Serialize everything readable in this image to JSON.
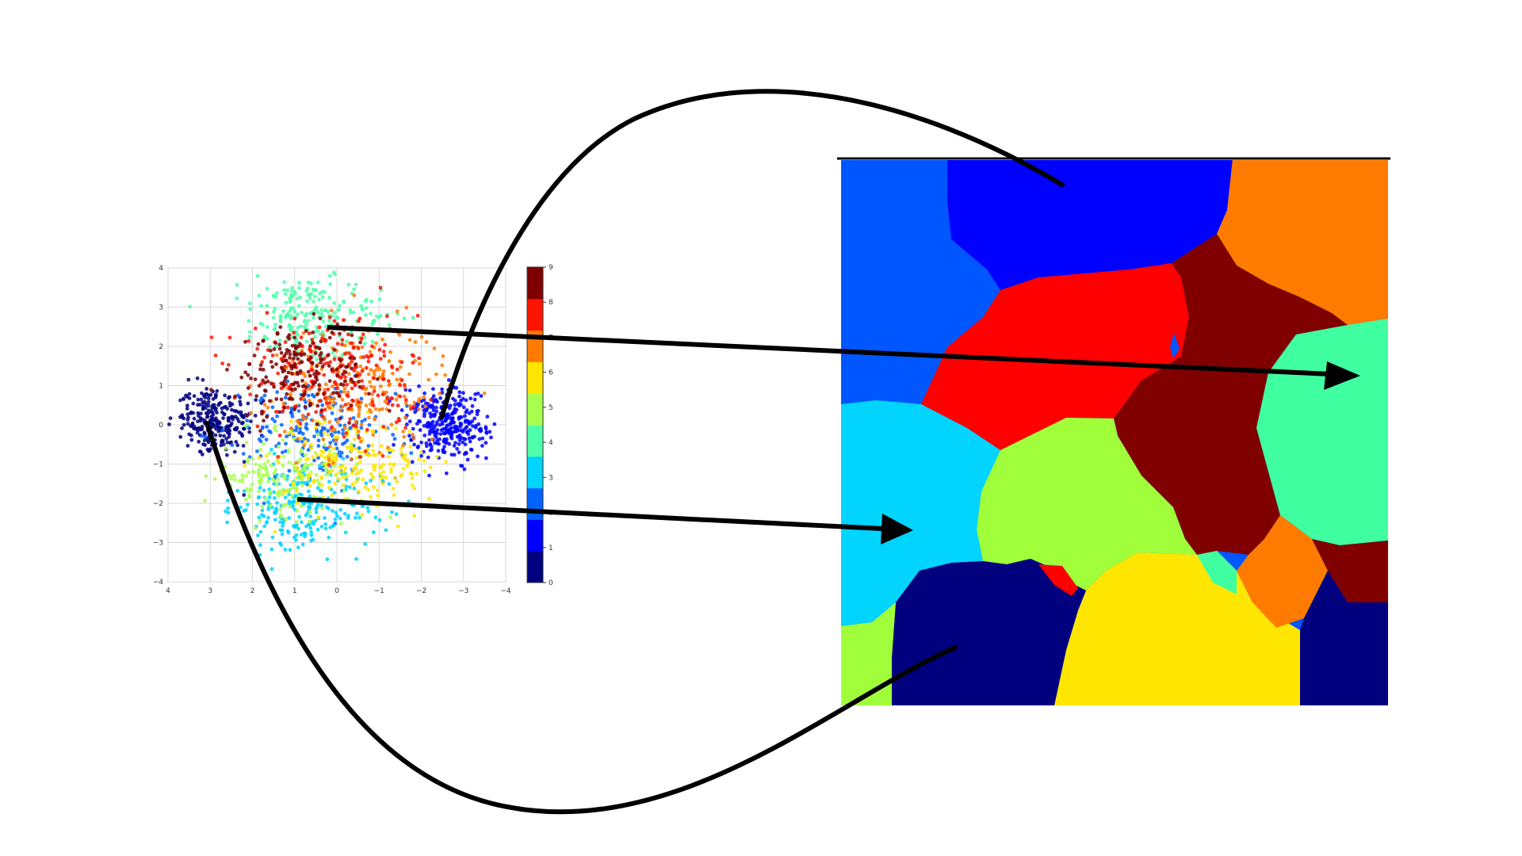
{
  "scatter": {
    "x_ticks": [
      "4",
      "3",
      "2",
      "1",
      "0",
      "−1",
      "−2",
      "−3",
      "−4"
    ],
    "y_ticks": [
      "4",
      "3",
      "2",
      "1",
      "0",
      "−1",
      "−2",
      "−3",
      "−4"
    ],
    "xlim": [
      4,
      -4
    ],
    "ylim": [
      -4,
      4
    ],
    "grid": true,
    "colorbar_ticks": [
      "9",
      "8",
      "7",
      "6",
      "5",
      "4",
      "3",
      "2",
      "1",
      "0"
    ],
    "colormap": [
      "#00007f",
      "#0000ff",
      "#0063ff",
      "#00d4ff",
      "#4effa9",
      "#a9ff4e",
      "#ffe600",
      "#ff7b00",
      "#ff1400",
      "#7f0000"
    ]
  },
  "clusters": [
    {
      "label": 0,
      "cx": 2.9,
      "cy": 0.1,
      "sx": 0.45,
      "sy": 0.45,
      "n": 260
    },
    {
      "label": 1,
      "cx": -2.6,
      "cy": 0.0,
      "sx": 0.45,
      "sy": 0.45,
      "n": 320
    },
    {
      "label": 2,
      "cx": 0.5,
      "cy": -0.2,
      "sx": 0.9,
      "sy": 0.6,
      "n": 200
    },
    {
      "label": 3,
      "cx": 0.8,
      "cy": -2.1,
      "sx": 0.8,
      "sy": 0.6,
      "n": 240
    },
    {
      "label": 4,
      "cx": 0.6,
      "cy": 2.8,
      "sx": 0.9,
      "sy": 0.5,
      "n": 230
    },
    {
      "label": 5,
      "cx": 1.3,
      "cy": -1.3,
      "sx": 0.8,
      "sy": 0.5,
      "n": 170
    },
    {
      "label": 6,
      "cx": -0.4,
      "cy": -1.0,
      "sx": 0.9,
      "sy": 0.6,
      "n": 210
    },
    {
      "label": 7,
      "cx": -0.5,
      "cy": 1.0,
      "sx": 1.0,
      "sy": 0.8,
      "n": 230
    },
    {
      "label": 8,
      "cx": 0.1,
      "cy": 1.3,
      "sx": 1.0,
      "sy": 0.8,
      "n": 230
    },
    {
      "label": 9,
      "cx": 0.9,
      "cy": 1.4,
      "sx": 0.8,
      "sy": 0.6,
      "n": 200
    }
  ],
  "map": {
    "colors": [
      "#0000ff",
      "#0057ff",
      "#ff7b00",
      "#ff0000",
      "#800000",
      "#00d4ff",
      "#a0ff3a",
      "#40ffa0",
      "#ffe600",
      "#00007f",
      "#ff7b00",
      "#800000",
      "#00007f",
      "#a0ff3a",
      "#ff0000",
      "#40ffa0",
      "#0057ff"
    ]
  }
}
